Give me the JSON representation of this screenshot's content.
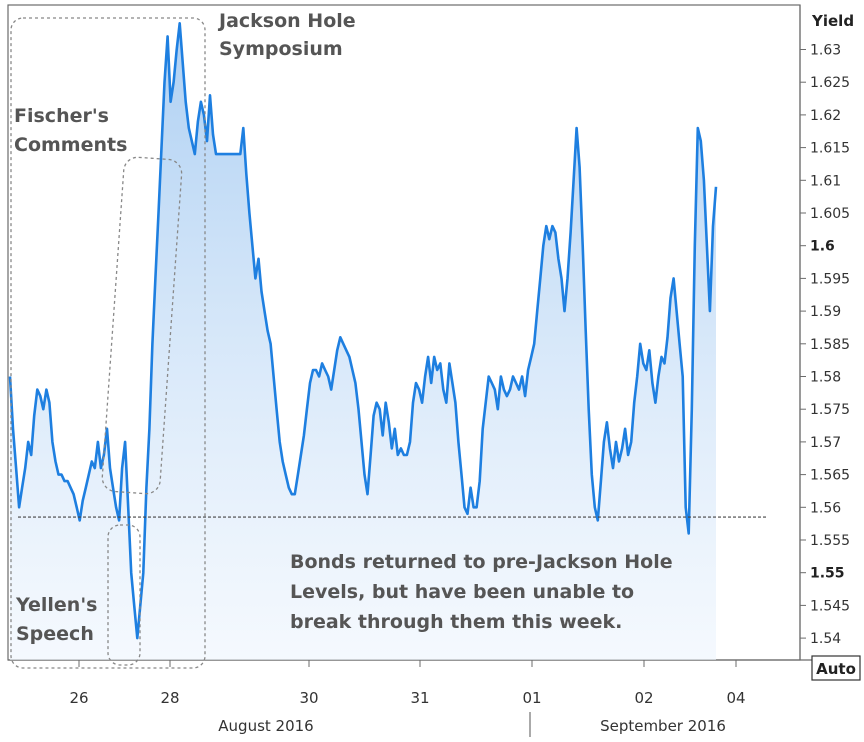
{
  "chart_data": {
    "type": "area",
    "ylabel": "Yield",
    "ylim": [
      1.535,
      1.635
    ],
    "y_ticks": [
      "1.63",
      "1.625",
      "1.62",
      "1.615",
      "1.61",
      "1.605",
      "1.6",
      "1.595",
      "1.59",
      "1.585",
      "1.58",
      "1.575",
      "1.57",
      "1.565",
      "1.56",
      "1.555",
      "1.55",
      "1.545",
      "1.54"
    ],
    "y_major_ticks": [
      "1.6",
      "1.55"
    ],
    "x_ticks": [
      "26",
      "28",
      "30",
      "31",
      "01",
      "02",
      "04"
    ],
    "x_month_labels": [
      "August 2016",
      "September 2016"
    ],
    "scale_button": "Auto",
    "reference_line": 1.5585,
    "colors": {
      "line": "#1e7fe0",
      "fill_top": "#a9cdf2",
      "fill_bottom": "#eef5fd",
      "annotation": "#555555",
      "box": "#888888"
    },
    "annotations": {
      "jackson_hole": [
        "Jackson Hole",
        "Symposium"
      ],
      "fischer": [
        "Fischer's",
        "Comments"
      ],
      "yellen": [
        "Yellen's",
        "Speech"
      ],
      "bonds_note": [
        "Bonds returned to pre-Jackson Hole",
        "Levels, but have been unable to",
        "break through them this week."
      ]
    },
    "series": [
      {
        "x_start": "Aug 25 2016",
        "x_end": "Sep 3 2016",
        "values": [
          1.58,
          1.572,
          1.566,
          1.56,
          1.563,
          1.566,
          1.57,
          1.568,
          1.574,
          1.578,
          1.577,
          1.575,
          1.578,
          1.576,
          1.57,
          1.567,
          1.565,
          1.565,
          1.564,
          1.564,
          1.563,
          1.562,
          1.56,
          1.558,
          1.561,
          1.563,
          1.565,
          1.567,
          1.566,
          1.57,
          1.566,
          1.568,
          1.572,
          1.566,
          1.563,
          1.56,
          1.558,
          1.566,
          1.57,
          1.56,
          1.55,
          1.545,
          1.54,
          1.545,
          1.55,
          1.563,
          1.572,
          1.585,
          1.595,
          1.605,
          1.615,
          1.625,
          1.632,
          1.622,
          1.625,
          1.63,
          1.634,
          1.628,
          1.622,
          1.618,
          1.616,
          1.614,
          1.619,
          1.622,
          1.62,
          1.616,
          1.623,
          1.617,
          1.614,
          1.614,
          1.614,
          1.614,
          1.614,
          1.614,
          1.614,
          1.614,
          1.614,
          1.618,
          1.611,
          1.605,
          1.6,
          1.595,
          1.598,
          1.593,
          1.59,
          1.587,
          1.585,
          1.58,
          1.575,
          1.57,
          1.567,
          1.565,
          1.563,
          1.562,
          1.562,
          1.565,
          1.568,
          1.571,
          1.575,
          1.579,
          1.581,
          1.581,
          1.58,
          1.582,
          1.581,
          1.58,
          1.578,
          1.581,
          1.584,
          1.586,
          1.585,
          1.584,
          1.583,
          1.581,
          1.579,
          1.575,
          1.57,
          1.565,
          1.562,
          1.568,
          1.574,
          1.576,
          1.575,
          1.571,
          1.576,
          1.573,
          1.569,
          1.572,
          1.568,
          1.569,
          1.568,
          1.568,
          1.57,
          1.576,
          1.579,
          1.578,
          1.576,
          1.58,
          1.583,
          1.579,
          1.583,
          1.581,
          1.582,
          1.578,
          1.576,
          1.582,
          1.579,
          1.576,
          1.57,
          1.565,
          1.56,
          1.559,
          1.563,
          1.56,
          1.56,
          1.564,
          1.572,
          1.576,
          1.58,
          1.579,
          1.578,
          1.575,
          1.58,
          1.578,
          1.577,
          1.578,
          1.58,
          1.579,
          1.578,
          1.58,
          1.577,
          1.581,
          1.583,
          1.585,
          1.59,
          1.595,
          1.6,
          1.603,
          1.601,
          1.603,
          1.602,
          1.598,
          1.595,
          1.59,
          1.595,
          1.602,
          1.61,
          1.618,
          1.612,
          1.6,
          1.587,
          1.575,
          1.565,
          1.56,
          1.558,
          1.564,
          1.57,
          1.573,
          1.569,
          1.566,
          1.57,
          1.567,
          1.569,
          1.572,
          1.568,
          1.57,
          1.576,
          1.58,
          1.585,
          1.582,
          1.581,
          1.584,
          1.579,
          1.576,
          1.58,
          1.583,
          1.582,
          1.586,
          1.592,
          1.595,
          1.59,
          1.585,
          1.58,
          1.56,
          1.556,
          1.575,
          1.6,
          1.618,
          1.616,
          1.61,
          1.6,
          1.59,
          1.603,
          1.609
        ]
      }
    ]
  }
}
